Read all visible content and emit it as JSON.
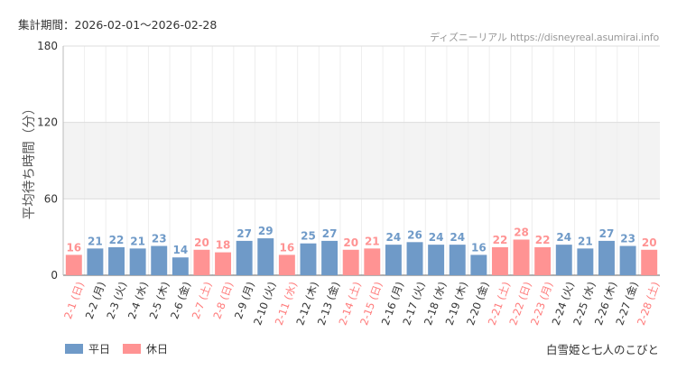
{
  "header": {
    "period": "集計期間：2026-02-01～2026-02-28",
    "source": "ディズニーリアル https://disneyreal.asumirai.info"
  },
  "attraction_name": "白雪姫と七人のこびと",
  "legend": [
    {
      "label": "平日",
      "color": "#6f9ac8"
    },
    {
      "label": "休日",
      "color": "#ff9393"
    }
  ],
  "chart_data": {
    "type": "bar",
    "ylabel": "平均待ち時間（分）",
    "xlabel": "",
    "ylim": [
      0,
      180
    ],
    "yticks": [
      0,
      60,
      120,
      180
    ],
    "shaded_band": [
      60,
      120
    ],
    "grid": true,
    "colors": {
      "weekday": "#6f9ac8",
      "holiday": "#ff9393"
    },
    "categories": [
      "2-1 (日)",
      "2-2 (月)",
      "2-3 (火)",
      "2-4 (水)",
      "2-5 (木)",
      "2-6 (金)",
      "2-7 (土)",
      "2-8 (日)",
      "2-9 (月)",
      "2-10 (火)",
      "2-11 (水)",
      "2-12 (木)",
      "2-13 (金)",
      "2-14 (土)",
      "2-15 (日)",
      "2-16 (月)",
      "2-17 (火)",
      "2-18 (水)",
      "2-19 (木)",
      "2-20 (金)",
      "2-21 (土)",
      "2-22 (日)",
      "2-23 (月)",
      "2-24 (火)",
      "2-25 (水)",
      "2-26 (木)",
      "2-27 (金)",
      "2-28 (土)"
    ],
    "values": [
      16,
      21,
      22,
      21,
      23,
      14,
      20,
      18,
      27,
      29,
      16,
      25,
      27,
      20,
      21,
      24,
      26,
      24,
      24,
      16,
      22,
      28,
      22,
      24,
      21,
      27,
      23,
      20
    ],
    "day_type": [
      "休日",
      "平日",
      "平日",
      "平日",
      "平日",
      "平日",
      "休日",
      "休日",
      "平日",
      "平日",
      "休日",
      "平日",
      "平日",
      "休日",
      "休日",
      "平日",
      "平日",
      "平日",
      "平日",
      "平日",
      "休日",
      "休日",
      "休日",
      "平日",
      "平日",
      "平日",
      "平日",
      "休日"
    ]
  }
}
